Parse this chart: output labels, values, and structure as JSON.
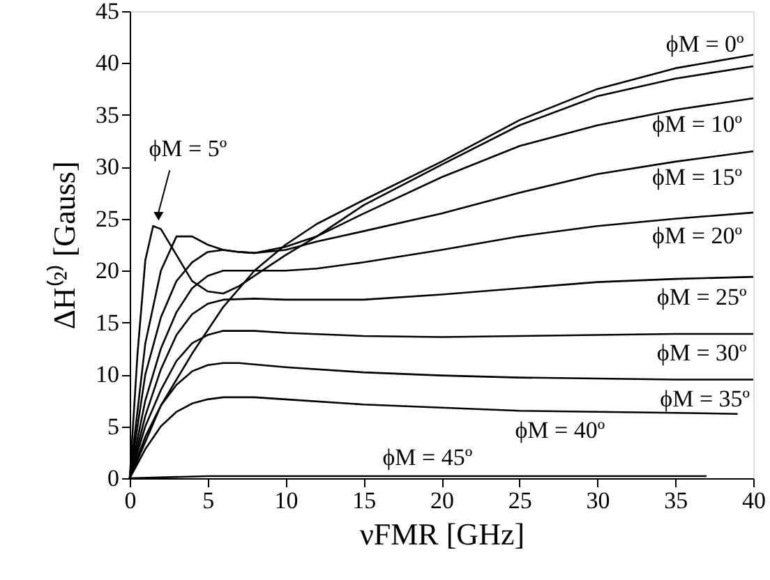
{
  "chart_data": {
    "type": "line",
    "xlabel": "νFMR [GHz]",
    "ylabel": "ΔH⁽²⁾ [Gauss]",
    "xlim": [
      0,
      40
    ],
    "xticks": [
      0,
      5,
      10,
      15,
      20,
      25,
      30,
      35,
      40
    ],
    "ylim": [
      0,
      45
    ],
    "yticks": [
      0,
      5,
      10,
      15,
      20,
      25,
      30,
      35,
      40,
      45
    ],
    "grid": false,
    "marker": "none",
    "line_style": "solid",
    "series": [
      {
        "color": "#000000",
        "x": [
          0,
          2,
          4,
          6,
          8,
          10,
          12,
          15,
          20,
          25,
          30,
          35,
          40
        ],
        "values": [
          0,
          7,
          12,
          16.5,
          20,
          22.5,
          24.5,
          26.8,
          30.5,
          34.5,
          37.5,
          39.5,
          40.8
        ]
      },
      {
        "color": "#000000",
        "x": [
          0,
          0.5,
          1,
          1.5,
          2,
          3,
          4,
          5,
          6,
          7,
          8,
          10,
          12,
          15,
          20,
          25,
          30,
          35,
          40
        ],
        "values": [
          0,
          12,
          21,
          24.3,
          24,
          21.5,
          19,
          18,
          17.8,
          18.5,
          19.5,
          21.5,
          23.3,
          26.3,
          30.2,
          34,
          36.8,
          38.5,
          39.7
        ]
      },
      {
        "color": "#000000",
        "x": [
          0,
          1,
          2,
          3,
          4,
          5,
          6,
          7,
          8,
          10,
          12,
          15,
          20,
          25,
          30,
          35,
          40
        ],
        "values": [
          0,
          13,
          20,
          23.3,
          23.3,
          22.5,
          22,
          21.8,
          21.7,
          22.3,
          23.3,
          25.5,
          29,
          32,
          34,
          35.5,
          36.6
        ]
      },
      {
        "color": "#000000",
        "x": [
          0,
          1,
          2,
          3,
          4,
          5,
          6,
          7,
          8,
          10,
          12,
          15,
          20,
          25,
          30,
          35,
          40
        ],
        "values": [
          0,
          10,
          15.5,
          19,
          20.8,
          21.8,
          22,
          21.8,
          21.7,
          22,
          22.8,
          23.8,
          25.5,
          27.5,
          29.3,
          30.5,
          31.5
        ]
      },
      {
        "color": "#000000",
        "x": [
          0,
          1,
          2,
          3,
          4,
          5,
          6,
          8,
          10,
          12,
          15,
          20,
          25,
          30,
          35,
          40
        ],
        "values": [
          0,
          7.5,
          12.5,
          16,
          18.3,
          19.5,
          20,
          20,
          20,
          20.2,
          20.8,
          22,
          23.3,
          24.3,
          25,
          25.6
        ]
      },
      {
        "color": "#000000",
        "x": [
          0,
          1,
          2,
          3,
          4,
          5,
          6,
          8,
          10,
          15,
          20,
          25,
          30,
          35,
          40
        ],
        "values": [
          0,
          6,
          10.5,
          13.8,
          15.8,
          16.8,
          17.2,
          17.3,
          17.2,
          17.2,
          17.7,
          18.3,
          18.9,
          19.2,
          19.4
        ]
      },
      {
        "color": "#000000",
        "x": [
          0,
          1,
          2,
          3,
          4,
          5,
          6,
          8,
          10,
          15,
          20,
          25,
          30,
          35,
          40
        ],
        "values": [
          0,
          5,
          8.5,
          11.3,
          13,
          13.8,
          14.2,
          14.2,
          14,
          13.7,
          13.6,
          13.7,
          13.8,
          13.9,
          13.9
        ]
      },
      {
        "color": "#000000",
        "x": [
          0,
          1,
          2,
          3,
          4,
          5,
          6,
          7,
          10,
          15,
          20,
          25,
          30,
          35,
          40
        ],
        "values": [
          0,
          4,
          7,
          9,
          10.3,
          10.9,
          11.1,
          11.1,
          10.7,
          10.2,
          9.9,
          9.7,
          9.6,
          9.5,
          9.5
        ]
      },
      {
        "color": "#000000",
        "x": [
          0,
          1,
          2,
          3,
          4,
          5,
          6,
          8,
          10,
          15,
          20,
          25,
          30,
          35,
          39
        ],
        "values": [
          0,
          2.8,
          5,
          6.4,
          7.2,
          7.6,
          7.8,
          7.8,
          7.6,
          7.1,
          6.8,
          6.5,
          6.4,
          6.3,
          6.2
        ]
      },
      {
        "color": "#000000",
        "x": [
          0,
          5,
          37
        ],
        "values": [
          0,
          0.2,
          0.2
        ]
      }
    ],
    "annotations": [
      {
        "text": "ϕM = 5º",
        "x": 1.76,
        "y": 24.3
      },
      {
        "text": "ϕM = 0º",
        "x": 36.9,
        "y": 40.0
      },
      {
        "text": "ϕM = 10º",
        "x": 36.4,
        "y": 35.9
      },
      {
        "text": "ϕM = 15º",
        "x": 36.4,
        "y": 30.8
      },
      {
        "text": "ϕM = 20º",
        "x": 36.4,
        "y": 25.2
      },
      {
        "text": "ϕM = 25º",
        "x": 36.7,
        "y": 19.3
      },
      {
        "text": "ϕM = 30º",
        "x": 36.7,
        "y": 13.9
      },
      {
        "text": "ϕM = 35º",
        "x": 36.9,
        "y": 9.5
      },
      {
        "text": "ϕM = 40º",
        "x": 27.6,
        "y": 6.45
      },
      {
        "text": "ϕM = 45º",
        "x": 19.1,
        "y": 0.2
      }
    ]
  }
}
